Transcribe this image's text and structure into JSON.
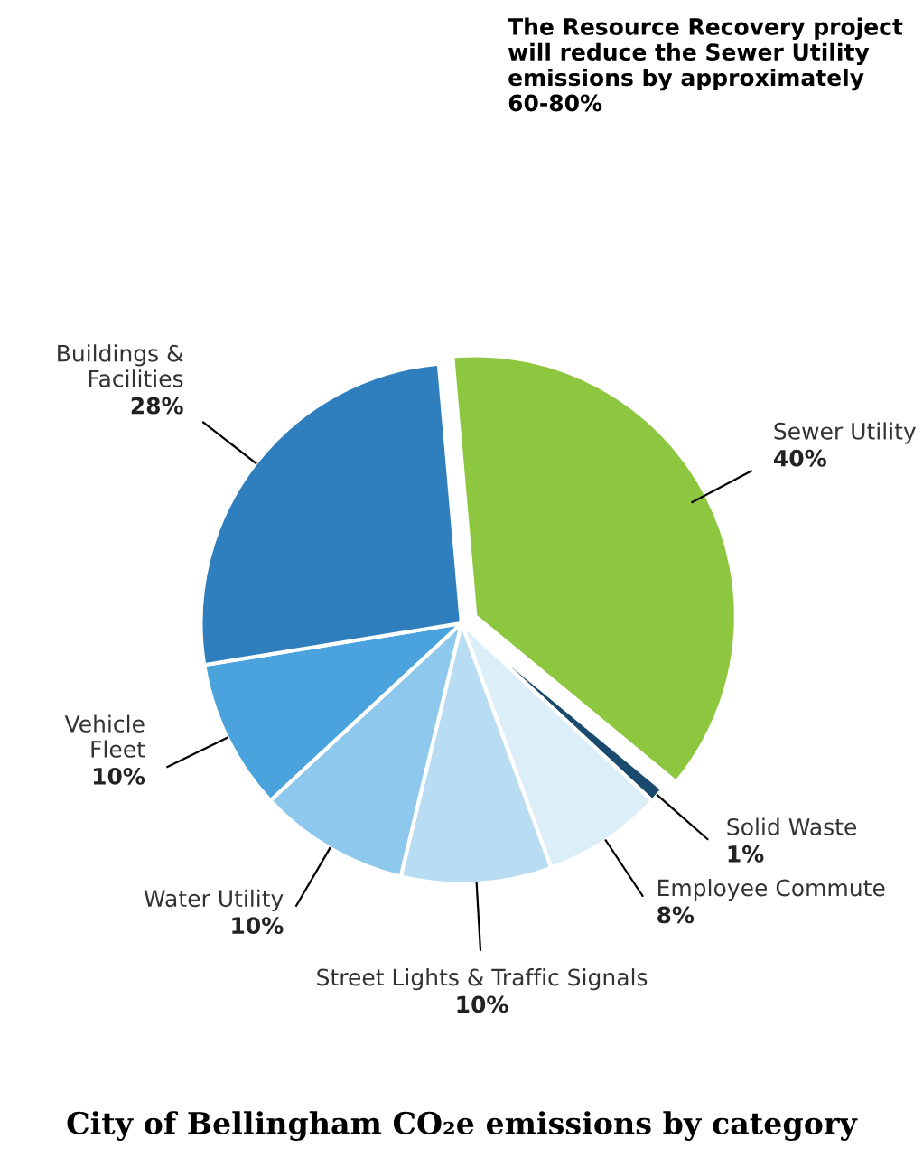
{
  "chart_data": {
    "type": "pie",
    "title": "City of Bellingham CO₂e emissions by category",
    "categories": [
      "Sewer Utility",
      "Solid Waste",
      "Employee Commute",
      "Street Lights & Traffic Signals",
      "Water Utility",
      "Vehicle Fleet",
      "Buildings & Facilities"
    ],
    "values": [
      40,
      1,
      8,
      10,
      10,
      10,
      28
    ],
    "colors": [
      "#8dc63f",
      "#1a4a6e",
      "#dceef8",
      "#b8dcf2",
      "#8ec8ec",
      "#4aa3dc",
      "#2f7fbf"
    ],
    "value_labels": [
      "40%",
      "1%",
      "8%",
      "10%",
      "10%",
      "10%",
      "28%"
    ],
    "annotations": [
      "The Resource Recovery project will reduce the Sewer Utility emissions by approximately 60-80%"
    ]
  }
}
